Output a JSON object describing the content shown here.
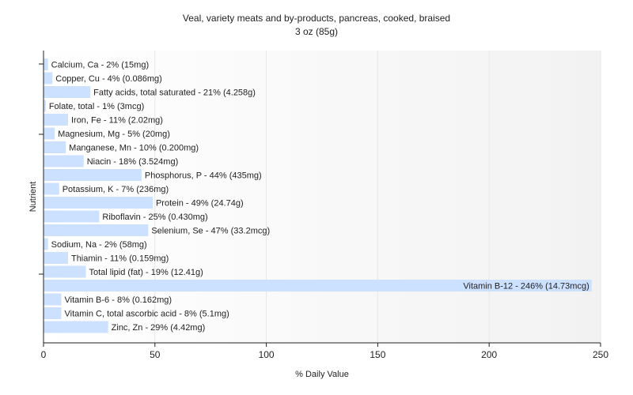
{
  "chart_data": {
    "type": "bar",
    "orientation": "horizontal",
    "title": "Veal, variety meats and by-products, pancreas, cooked, braised",
    "subtitle": "3 oz (85g)",
    "xlabel": "% Daily Value",
    "ylabel": "Nutrient",
    "xlim": [
      0,
      250
    ],
    "xticks": [
      0,
      50,
      100,
      150,
      200,
      250
    ],
    "grid": true,
    "legend": "none",
    "bar_color": "#cce0ff",
    "categories": [
      "Calcium, Ca - 2% (15mg)",
      "Copper, Cu - 4% (0.086mg)",
      "Fatty acids, total saturated - 21% (4.258g)",
      "Folate, total - 1% (3mcg)",
      "Iron, Fe - 11% (2.02mg)",
      "Magnesium, Mg - 5% (20mg)",
      "Manganese, Mn - 10% (0.200mg)",
      "Niacin - 18% (3.524mg)",
      "Phosphorus, P - 44% (435mg)",
      "Potassium, K - 7% (236mg)",
      "Protein - 49% (24.74g)",
      "Riboflavin - 25% (0.430mg)",
      "Selenium, Se - 47% (33.2mcg)",
      "Sodium, Na - 2% (58mg)",
      "Thiamin - 11% (0.159mg)",
      "Total lipid (fat) - 19% (12.41g)",
      "Vitamin B-12 - 246% (14.73mcg)",
      "Vitamin B-6 - 8% (0.162mg)",
      "Vitamin C, total ascorbic acid - 8% (5.1mg)",
      "Zinc, Zn - 29% (4.42mg)"
    ],
    "values": [
      2,
      4,
      21,
      1,
      11,
      5,
      10,
      18,
      44,
      7,
      49,
      25,
      47,
      2,
      11,
      19,
      246,
      8,
      8,
      29
    ]
  }
}
